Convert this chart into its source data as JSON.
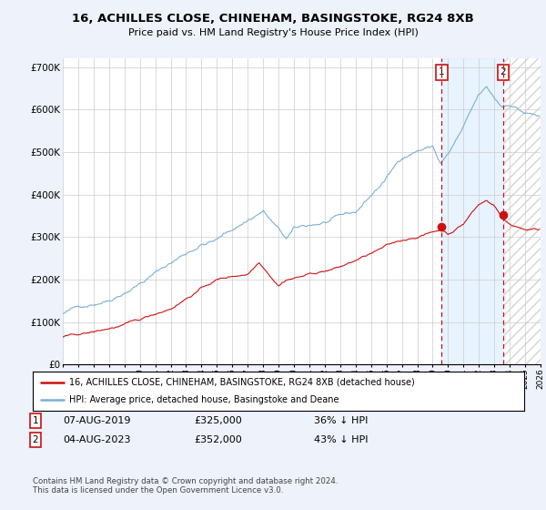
{
  "title": "16, ACHILLES CLOSE, CHINEHAM, BASINGSTOKE, RG24 8XB",
  "subtitle": "Price paid vs. HM Land Registry's House Price Index (HPI)",
  "ylabel_ticks": [
    "£0",
    "£100K",
    "£200K",
    "£300K",
    "£400K",
    "£500K",
    "£600K",
    "£700K"
  ],
  "ytick_values": [
    0,
    100000,
    200000,
    300000,
    400000,
    500000,
    600000,
    700000
  ],
  "ylim": [
    0,
    720000
  ],
  "x_start_year": 1995,
  "x_end_year": 2026,
  "hpi_color": "#7bafd4",
  "hpi_fill_color": "#ddeeff",
  "price_color": "#cc1111",
  "marker1_year": 2019.58,
  "marker1_price": 325000,
  "marker2_year": 2023.58,
  "marker2_price": 352000,
  "dashed_line_color": "#cc1111",
  "legend_label_red": "16, ACHILLES CLOSE, CHINEHAM, BASINGSTOKE, RG24 8XB (detached house)",
  "legend_label_blue": "HPI: Average price, detached house, Basingstoke and Deane",
  "annotation1_num": "1",
  "annotation2_num": "2",
  "info1_date": "07-AUG-2019",
  "info1_price": "£325,000",
  "info1_hpi": "36% ↓ HPI",
  "info2_date": "04-AUG-2023",
  "info2_price": "£352,000",
  "info2_hpi": "43% ↓ HPI",
  "footer": "Contains HM Land Registry data © Crown copyright and database right 2024.\nThis data is licensed under the Open Government Licence v3.0.",
  "background_color": "#eef2fb",
  "plot_bg_color": "#ffffff",
  "grid_color": "#cccccc"
}
